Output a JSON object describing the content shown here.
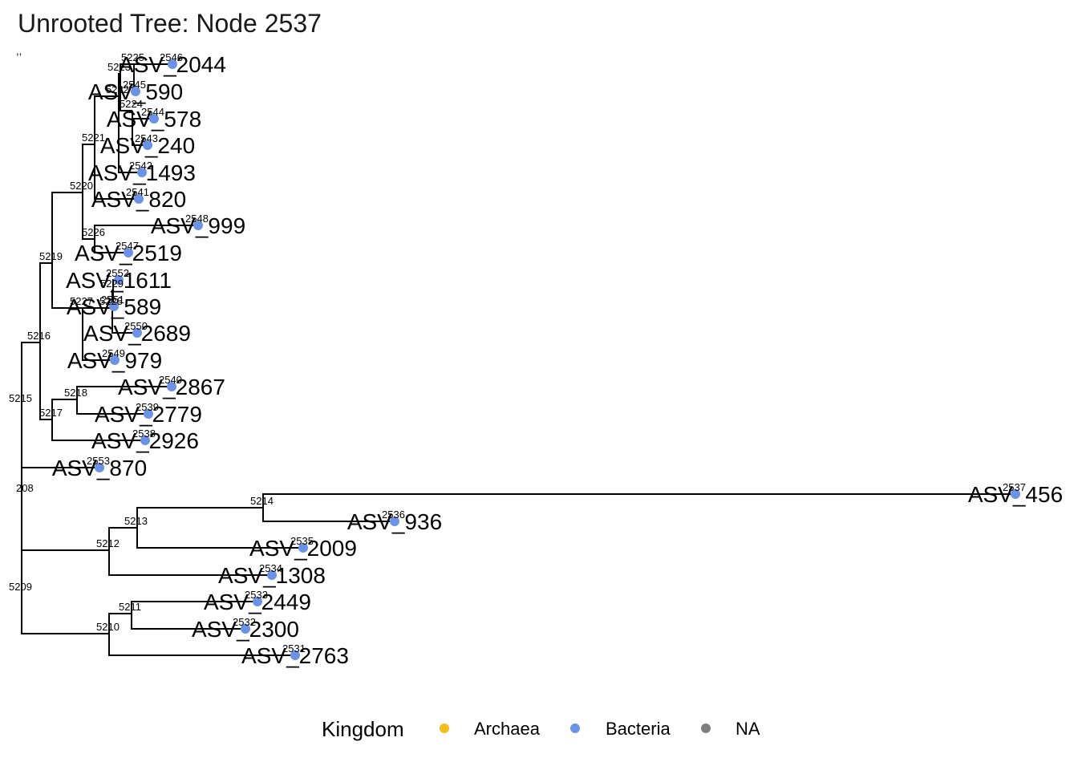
{
  "title": "Unrooted Tree: Node 2537",
  "corner_mark": ",,",
  "legend": {
    "title": "Kingdom",
    "items": [
      {
        "label": "Archaea",
        "color": "#f5bc1c"
      },
      {
        "label": "Bacteria",
        "color": "#6a93e8"
      },
      {
        "label": "NA",
        "color": "#7f7f7f"
      }
    ]
  },
  "tree": {
    "root_label": "208",
    "edges": [
      [
        "208",
        "5215"
      ],
      [
        "208",
        "5209"
      ],
      [
        "5215",
        "5216"
      ],
      [
        "5215",
        "2553"
      ],
      [
        "5216",
        "5219"
      ],
      [
        "5216",
        "5217"
      ],
      [
        "5219",
        "5220"
      ],
      [
        "5219",
        "5227"
      ],
      [
        "5220",
        "5221"
      ],
      [
        "5220",
        "5226"
      ],
      [
        "5221",
        "5222"
      ],
      [
        "5221",
        "2541"
      ],
      [
        "5222",
        "5223"
      ],
      [
        "5222",
        "2542"
      ],
      [
        "5223",
        "5225"
      ],
      [
        "5223",
        "5224"
      ],
      [
        "5225",
        "2546"
      ],
      [
        "5225",
        "2545"
      ],
      [
        "5224",
        "2544"
      ],
      [
        "5224",
        "2543"
      ],
      [
        "5226",
        "2548"
      ],
      [
        "5226",
        "2547"
      ],
      [
        "5227",
        "5228"
      ],
      [
        "5227",
        "2549"
      ],
      [
        "5228",
        "5229"
      ],
      [
        "5228",
        "2550"
      ],
      [
        "5229",
        "2552"
      ],
      [
        "5229",
        "2551"
      ],
      [
        "5217",
        "5218"
      ],
      [
        "5217",
        "2538"
      ],
      [
        "5218",
        "2540"
      ],
      [
        "5218",
        "2539"
      ],
      [
        "5209",
        "5212"
      ],
      [
        "5209",
        "5210"
      ],
      [
        "5212",
        "5213"
      ],
      [
        "5212",
        "2534"
      ],
      [
        "5213",
        "5214"
      ],
      [
        "5213",
        "2535"
      ],
      [
        "5214",
        "2537"
      ],
      [
        "5214",
        "2536"
      ],
      [
        "5210",
        "5211"
      ],
      [
        "5210",
        "2531"
      ],
      [
        "5211",
        "2533"
      ],
      [
        "5211",
        "2532"
      ]
    ],
    "tips": [
      {
        "id": "2546",
        "label": "ASV_2044"
      },
      {
        "id": "2545",
        "label": "ASV_590"
      },
      {
        "id": "2544",
        "label": "ASV_578"
      },
      {
        "id": "2543",
        "label": "ASV_240"
      },
      {
        "id": "2542",
        "label": "ASV_1493"
      },
      {
        "id": "2541",
        "label": "ASV_820"
      },
      {
        "id": "2548",
        "label": "ASV_999"
      },
      {
        "id": "2547",
        "label": "ASV_2519"
      },
      {
        "id": "2552",
        "label": "ASV_1611"
      },
      {
        "id": "2551",
        "label": "ASV_589"
      },
      {
        "id": "2550",
        "label": "ASV_2689"
      },
      {
        "id": "2549",
        "label": "ASV_979"
      },
      {
        "id": "2540",
        "label": "ASV_2867"
      },
      {
        "id": "2539",
        "label": "ASV_2779"
      },
      {
        "id": "2538",
        "label": "ASV_2926"
      },
      {
        "id": "2553",
        "label": "ASV_870"
      },
      {
        "id": "2537",
        "label": "ASV_456"
      },
      {
        "id": "2536",
        "label": "ASV_936"
      },
      {
        "id": "2535",
        "label": "ASV_2009"
      },
      {
        "id": "2534",
        "label": "ASV_1308"
      },
      {
        "id": "2533",
        "label": "ASV_2449"
      },
      {
        "id": "2532",
        "label": "ASV_2300"
      },
      {
        "id": "2531",
        "label": "ASV_2763"
      }
    ],
    "tip_kingdom": "Bacteria"
  }
}
